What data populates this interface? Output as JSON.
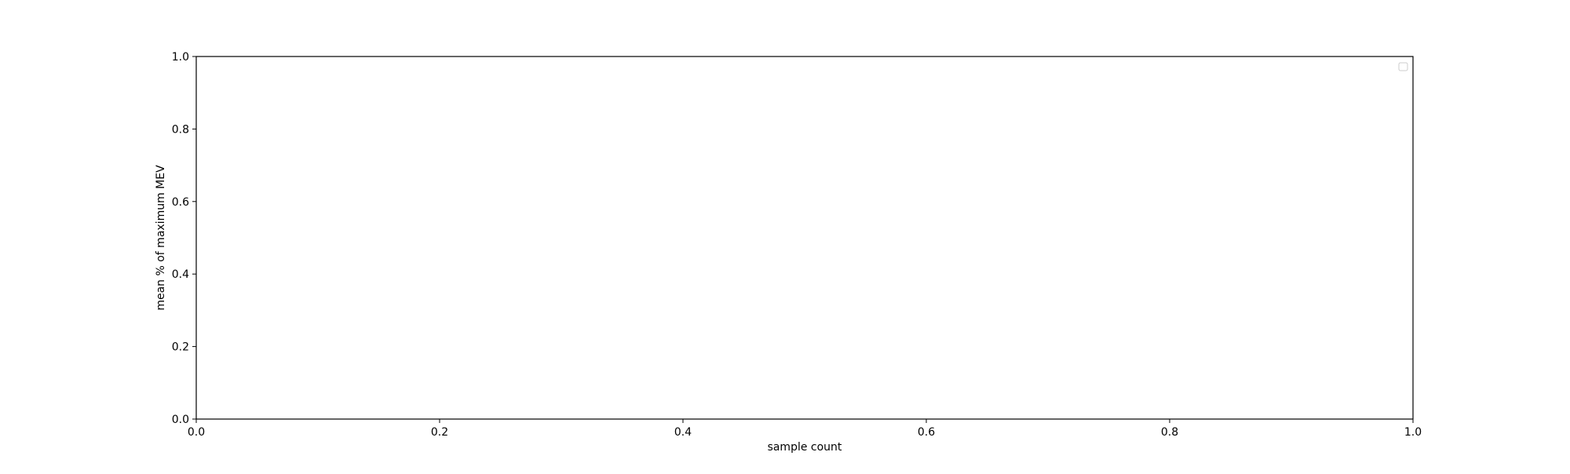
{
  "chart_data": {
    "type": "line",
    "title": "",
    "xlabel": "sample count",
    "ylabel": "mean % of maximum MEV",
    "xlim": [
      0.0,
      1.0
    ],
    "ylim": [
      0.0,
      1.0
    ],
    "x_ticks": [
      0.0,
      0.2,
      0.4,
      0.6,
      0.8,
      1.0
    ],
    "x_tick_labels": [
      "0.0",
      "0.2",
      "0.4",
      "0.6",
      "0.8",
      "1.0"
    ],
    "y_ticks": [
      0.0,
      0.2,
      0.4,
      0.6,
      0.8,
      1.0
    ],
    "y_tick_labels": [
      "0.0",
      "0.2",
      "0.4",
      "0.6",
      "0.8",
      "1.0"
    ],
    "series": [],
    "grid": false,
    "legend": {
      "placement": "top-right",
      "entries": []
    }
  },
  "colors": {
    "background": "#ffffff",
    "axes": "#000000",
    "legend_border": "#cccccc"
  }
}
